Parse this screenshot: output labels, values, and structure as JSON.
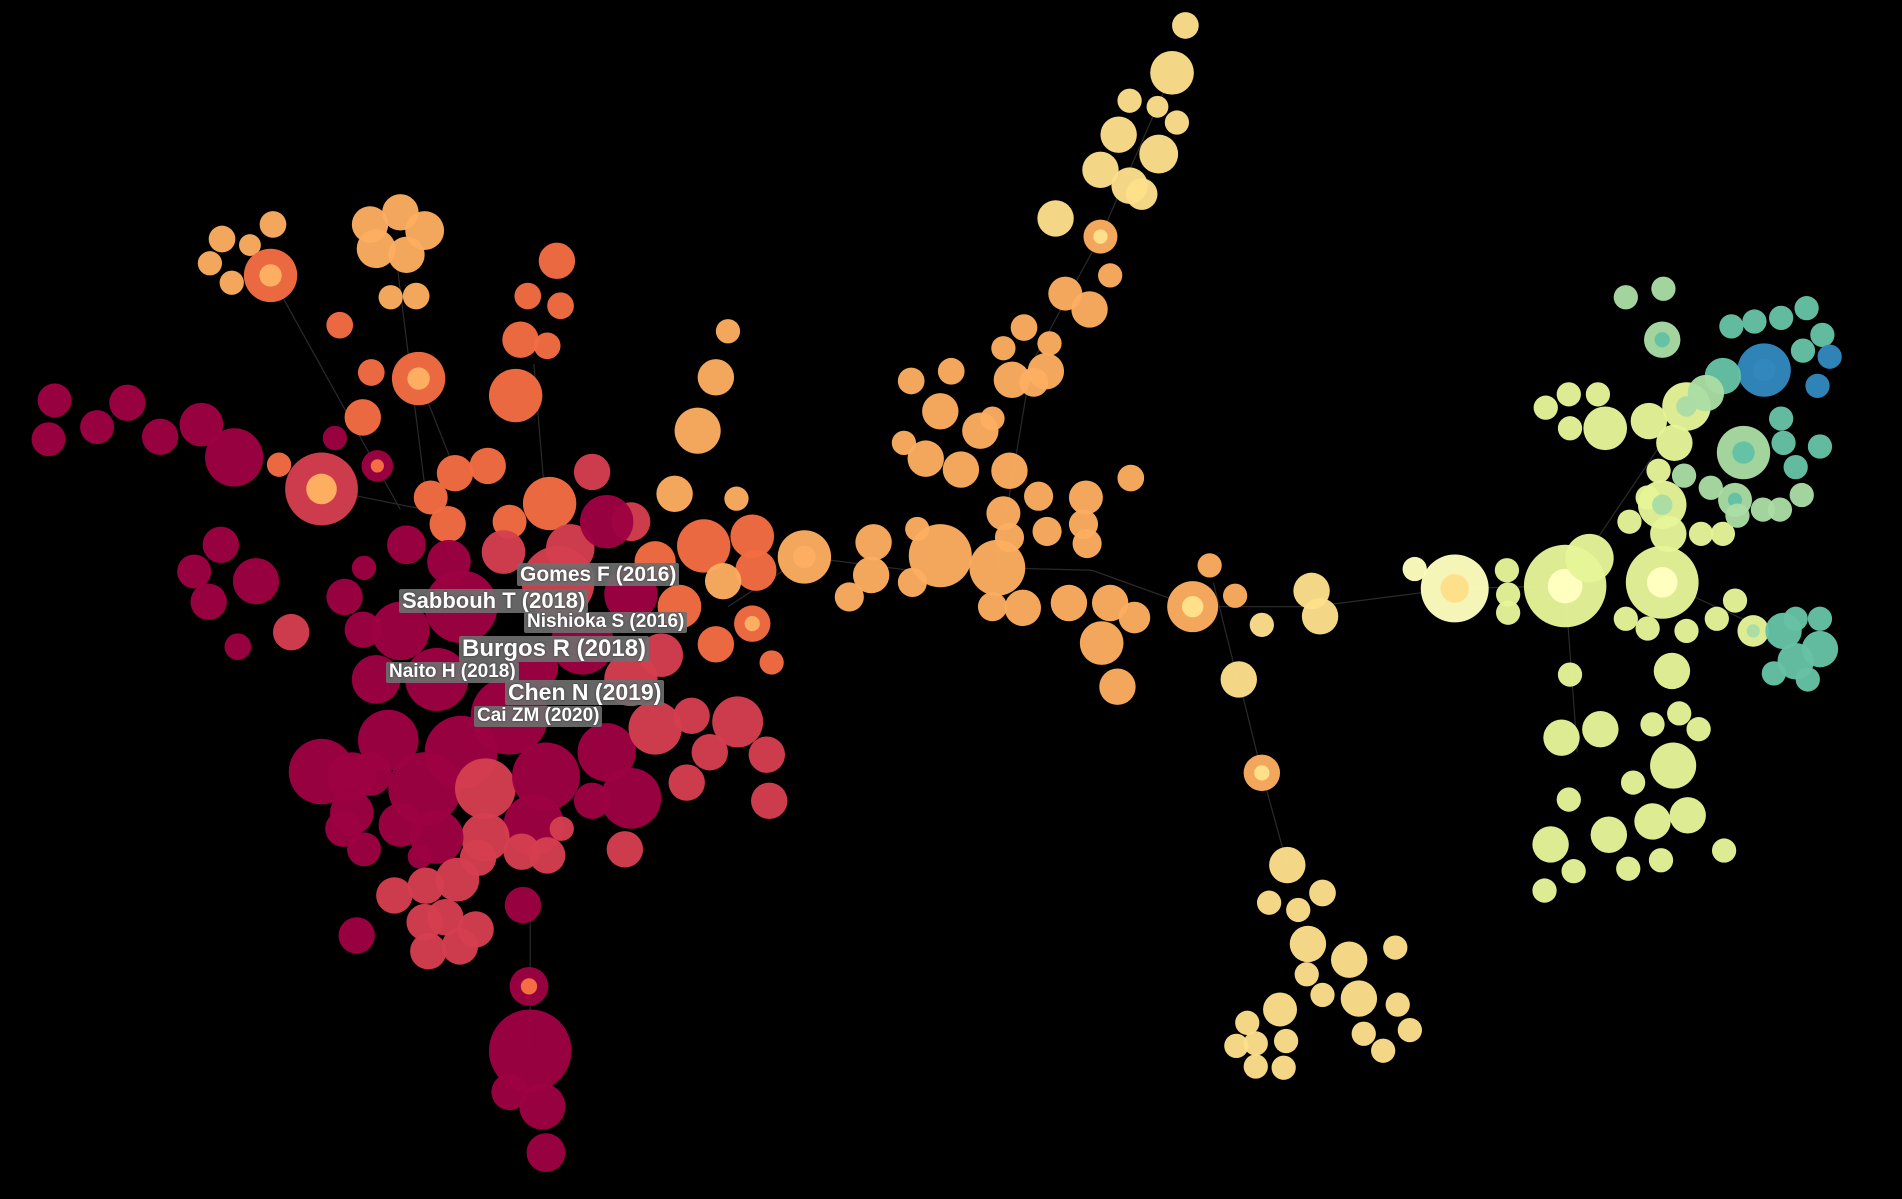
{
  "network": {
    "background_color": "#000000",
    "edge_color": "#2a2a2a",
    "color_scale": [
      "#9e0142",
      "#d53e4f",
      "#f46d43",
      "#fdae61",
      "#fee08b",
      "#ffffbf",
      "#e6f598",
      "#abdda4",
      "#66c2a5",
      "#3288bd"
    ],
    "labels": [
      {
        "text": "Gomes F (2016)"
      },
      {
        "text": "Sabbouh T (2018)"
      },
      {
        "text": "Nishioka S (2016)"
      },
      {
        "text": "Burgos R (2018)"
      },
      {
        "text": "Naito H (2018)"
      },
      {
        "text": "Chen N (2019)"
      },
      {
        "text": "Cai ZM (2020)"
      }
    ]
  }
}
